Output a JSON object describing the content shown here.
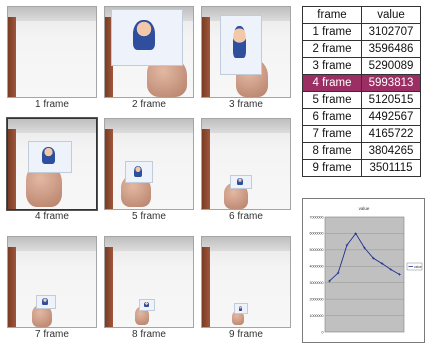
{
  "thumbnails": [
    {
      "label": "1 frame",
      "selected": false
    },
    {
      "label": "2 frame",
      "selected": false
    },
    {
      "label": "3 frame",
      "selected": false
    },
    {
      "label": "4 frame",
      "selected": true
    },
    {
      "label": "5 frame",
      "selected": false
    },
    {
      "label": "6 frame",
      "selected": false
    },
    {
      "label": "7 frame",
      "selected": false
    },
    {
      "label": "8 frame",
      "selected": false
    },
    {
      "label": "9 frame",
      "selected": false
    }
  ],
  "table": {
    "headers": [
      "frame",
      "value"
    ],
    "rows": [
      [
        "1 frame",
        "3102707"
      ],
      [
        "2 frame",
        "3596486"
      ],
      [
        "3 frame",
        "5290089"
      ],
      [
        "4 frame",
        "5993813"
      ],
      [
        "5 frame",
        "5120515"
      ],
      [
        "6 frame",
        "4492567"
      ],
      [
        "7 frame",
        "4165722"
      ],
      [
        "8 frame",
        "3804265"
      ],
      [
        "9 frame",
        "3501115"
      ]
    ],
    "highlight_row": 3,
    "highlight_color": "#9b2f63"
  },
  "chart_data": {
    "type": "line",
    "title": "value",
    "x": [
      1,
      2,
      3,
      4,
      5,
      6,
      7,
      8,
      9
    ],
    "series": [
      {
        "name": "value",
        "values": [
          3102707,
          3596486,
          5290089,
          5993813,
          5120515,
          4492567,
          4165722,
          3804265,
          3501115
        ],
        "color": "#1f2f8f"
      }
    ],
    "ylim": [
      0,
      7000000
    ],
    "yticks": [
      "7000000",
      "6000000",
      "5000000",
      "4000000",
      "3000000",
      "2000000",
      "1000000",
      "0"
    ],
    "plot_bg": "#c0c0c0",
    "grid": true,
    "legend": "right"
  }
}
